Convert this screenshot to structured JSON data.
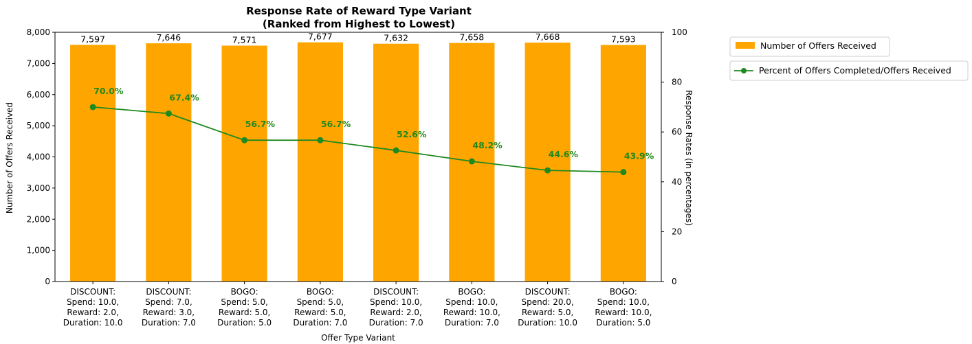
{
  "chart_data": {
    "type": "bar",
    "title_line1": "Response Rate of Reward Type Variant",
    "title_line2": "(Ranked from Highest to Lowest)",
    "xlabel": "Offer Type Variant",
    "ylabel": "Number of Offers Received",
    "y2label": "Response Rates (in percentages)",
    "ylim": [
      0,
      8000
    ],
    "y2lim": [
      0,
      100
    ],
    "yticks": [
      "0",
      "1,000",
      "2,000",
      "3,000",
      "4,000",
      "5,000",
      "6,000",
      "7,000",
      "8,000"
    ],
    "yticks_values": [
      0,
      1000,
      2000,
      3000,
      4000,
      5000,
      6000,
      7000,
      8000
    ],
    "y2ticks": [
      "0",
      "20",
      "40",
      "60",
      "80",
      "100"
    ],
    "y2ticks_values": [
      0,
      20,
      40,
      60,
      80,
      100
    ],
    "categories": [
      [
        "DISCOUNT:",
        "Spend: 10.0,",
        "Reward: 2.0,",
        "Duration: 10.0"
      ],
      [
        "DISCOUNT:",
        "Spend: 7.0,",
        "Reward: 3.0,",
        "Duration: 7.0"
      ],
      [
        "BOGO:",
        "Spend: 5.0,",
        "Reward: 5.0,",
        "Duration: 5.0"
      ],
      [
        "BOGO:",
        "Spend: 5.0,",
        "Reward: 5.0,",
        "Duration: 7.0"
      ],
      [
        "DISCOUNT:",
        "Spend: 10.0,",
        "Reward: 2.0,",
        "Duration: 7.0"
      ],
      [
        "BOGO:",
        "Spend: 10.0,",
        "Reward: 10.0,",
        "Duration: 7.0"
      ],
      [
        "DISCOUNT:",
        "Spend: 20.0,",
        "Reward: 5.0,",
        "Duration: 10.0"
      ],
      [
        "BOGO:",
        "Spend: 10.0,",
        "Reward: 10.0,",
        "Duration: 5.0"
      ]
    ],
    "series": [
      {
        "name": "Number of Offers Received",
        "type": "bar",
        "axis": "left",
        "color": "#FFA500",
        "values": [
          7597,
          7646,
          7571,
          7677,
          7632,
          7658,
          7668,
          7593
        ],
        "labels": [
          "7,597",
          "7,646",
          "7,571",
          "7,677",
          "7,632",
          "7,658",
          "7,668",
          "7,593"
        ]
      },
      {
        "name": "Percent of Offers Completed/Offers Received",
        "type": "line",
        "axis": "right",
        "color": "#1f8a1f",
        "values": [
          70.0,
          67.4,
          56.7,
          56.7,
          52.6,
          48.2,
          44.6,
          43.9
        ],
        "labels": [
          "70.0%",
          "67.4%",
          "56.7%",
          "56.7%",
          "52.6%",
          "48.2%",
          "44.6%",
          "43.9%"
        ]
      }
    ],
    "legend_position": "outside-top-right",
    "grid": false
  }
}
